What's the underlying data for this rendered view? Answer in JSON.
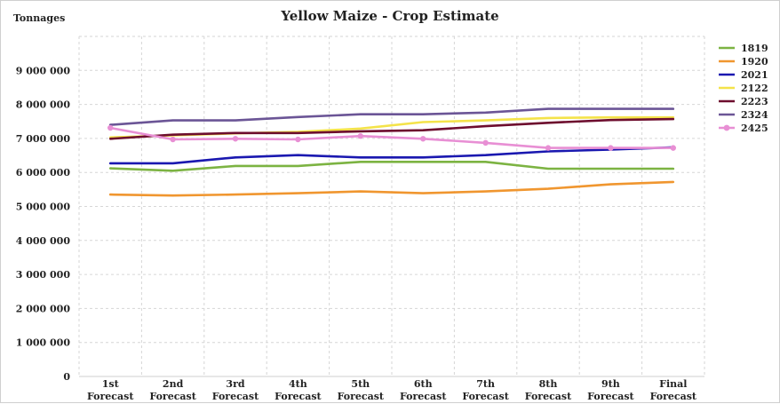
{
  "chart_data": {
    "type": "line",
    "title": "Yellow Maize - Crop Estimate",
    "ylabel": "Tonnages",
    "xlabel": "",
    "ylim": [
      0,
      10000000
    ],
    "yticks": [
      0,
      1000000,
      2000000,
      3000000,
      4000000,
      5000000,
      6000000,
      7000000,
      8000000,
      9000000
    ],
    "ytick_labels": [
      "0",
      "1 000 000",
      "2 000 000",
      "3 000 000",
      "4 000 000",
      "5 000 000",
      "6 000 000",
      "7 000 000",
      "8 000 000",
      "9 000 000"
    ],
    "categories": [
      [
        "1st",
        "Forecast"
      ],
      [
        "2nd",
        "Forecast"
      ],
      [
        "3rd",
        "Forecast"
      ],
      [
        "4th",
        "Forecast"
      ],
      [
        "5th",
        "Forecast"
      ],
      [
        "6th",
        "Forecast"
      ],
      [
        "7th",
        "Forecast"
      ],
      [
        "8th",
        "Forecast"
      ],
      [
        "9th",
        "Forecast"
      ],
      [
        "Final",
        "Forecast"
      ]
    ],
    "grid": true,
    "legend_position": "right",
    "series": [
      {
        "name": "1819",
        "color": "#7cb342",
        "marker": false,
        "values": [
          6120000,
          6050000,
          6190000,
          6190000,
          6310000,
          6310000,
          6310000,
          6110000,
          6110000,
          6110000
        ]
      },
      {
        "name": "1920",
        "color": "#f0962f",
        "marker": false,
        "values": [
          5350000,
          5320000,
          5350000,
          5390000,
          5440000,
          5390000,
          5440000,
          5520000,
          5650000,
          5720000
        ]
      },
      {
        "name": "2021",
        "color": "#1a18b0",
        "marker": false,
        "values": [
          6270000,
          6270000,
          6440000,
          6510000,
          6440000,
          6440000,
          6510000,
          6620000,
          6670000,
          6740000
        ]
      },
      {
        "name": "2122",
        "color": "#f4e34a",
        "marker": false,
        "values": [
          7030000,
          7090000,
          7150000,
          7190000,
          7290000,
          7480000,
          7530000,
          7600000,
          7620000,
          7620000
        ]
      },
      {
        "name": "2223",
        "color": "#6d0d2e",
        "marker": false,
        "values": [
          6990000,
          7110000,
          7160000,
          7160000,
          7210000,
          7240000,
          7360000,
          7460000,
          7540000,
          7570000
        ]
      },
      {
        "name": "2324",
        "color": "#6b5596",
        "marker": false,
        "values": [
          7400000,
          7530000,
          7530000,
          7630000,
          7710000,
          7710000,
          7760000,
          7870000,
          7870000,
          7870000
        ]
      },
      {
        "name": "2425",
        "color": "#e88fd4",
        "marker": true,
        "values": [
          7310000,
          6970000,
          6990000,
          6970000,
          7070000,
          6990000,
          6870000,
          6720000,
          6720000,
          6720000
        ]
      }
    ]
  }
}
